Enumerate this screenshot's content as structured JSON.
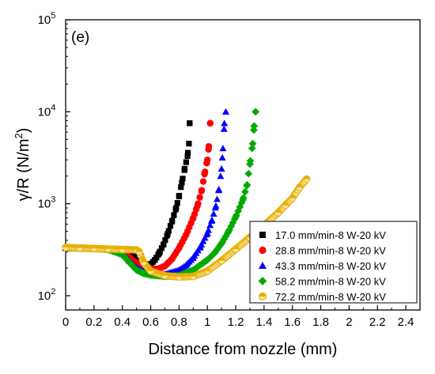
{
  "chart_data": {
    "type": "scatter",
    "title": "",
    "panel_label": "(e)",
    "xlabel": "Distance from nozzle (mm)",
    "ylabel_main": "γ/R (N/m",
    "ylabel_sup": "2",
    "ylabel_end": ")",
    "xlim": [
      0,
      2.5
    ],
    "ylim": [
      70,
      100000
    ],
    "y_scale": "log",
    "x_ticks": [
      "0",
      "0.2",
      "0.4",
      "0.6",
      "0.8",
      "1",
      "1.2",
      "1.4",
      "1.6",
      "1.8",
      "2",
      "2.2",
      "2.4"
    ],
    "y_ticks": [
      {
        "base": "10",
        "exp": "2",
        "value": 100
      },
      {
        "base": "10",
        "exp": "3",
        "value": 1000
      },
      {
        "base": "10",
        "exp": "4",
        "value": 10000
      },
      {
        "base": "10",
        "exp": "5",
        "value": 100000
      }
    ],
    "grid": false,
    "legend_position": "bottom-right",
    "series": [
      {
        "name": "17.0 mm/min-8 W-20 kV",
        "marker": "square",
        "color": "#000000",
        "points": [
          [
            0,
            330
          ],
          [
            0.1,
            328
          ],
          [
            0.2,
            326
          ],
          [
            0.3,
            322
          ],
          [
            0.4,
            310
          ],
          [
            0.45,
            290
          ],
          [
            0.5,
            255
          ],
          [
            0.55,
            225
          ],
          [
            0.58,
            215
          ],
          [
            0.6,
            220
          ],
          [
            0.63,
            245
          ],
          [
            0.66,
            290
          ],
          [
            0.69,
            360
          ],
          [
            0.72,
            470
          ],
          [
            0.75,
            640
          ],
          [
            0.78,
            900
          ],
          [
            0.8,
            1200
          ],
          [
            0.82,
            1700
          ],
          [
            0.84,
            2400
          ],
          [
            0.86,
            3300
          ],
          [
            0.87,
            4500
          ],
          [
            0.875,
            7500
          ]
        ]
      },
      {
        "name": "28.8 mm/min-8 W-20 kV",
        "marker": "circle",
        "color": "#ff0000",
        "points": [
          [
            0,
            330
          ],
          [
            0.1,
            328
          ],
          [
            0.2,
            326
          ],
          [
            0.3,
            322
          ],
          [
            0.4,
            300
          ],
          [
            0.45,
            260
          ],
          [
            0.5,
            225
          ],
          [
            0.55,
            205
          ],
          [
            0.6,
            195
          ],
          [
            0.65,
            195
          ],
          [
            0.7,
            210
          ],
          [
            0.75,
            250
          ],
          [
            0.8,
            330
          ],
          [
            0.85,
            460
          ],
          [
            0.9,
            700
          ],
          [
            0.93,
            950
          ],
          [
            0.96,
            1400
          ],
          [
            0.98,
            2100
          ],
          [
            1.0,
            3000
          ],
          [
            1.01,
            4200
          ],
          [
            1.02,
            7500
          ]
        ]
      },
      {
        "name": "43.3 mm/min-8 W-20 kV",
        "marker": "triangle",
        "color": "#0000ff",
        "points": [
          [
            0,
            330
          ],
          [
            0.1,
            328
          ],
          [
            0.2,
            325
          ],
          [
            0.3,
            320
          ],
          [
            0.4,
            290
          ],
          [
            0.45,
            240
          ],
          [
            0.5,
            200
          ],
          [
            0.55,
            185
          ],
          [
            0.6,
            175
          ],
          [
            0.7,
            172
          ],
          [
            0.8,
            190
          ],
          [
            0.85,
            215
          ],
          [
            0.9,
            260
          ],
          [
            0.95,
            340
          ],
          [
            1.0,
            480
          ],
          [
            1.03,
            650
          ],
          [
            1.06,
            950
          ],
          [
            1.08,
            1400
          ],
          [
            1.1,
            2400
          ],
          [
            1.11,
            4000
          ],
          [
            1.12,
            7500
          ],
          [
            1.13,
            10000
          ]
        ]
      },
      {
        "name": "58.2 mm/min-8 W-20 kV",
        "marker": "diamond",
        "color": "#00aa00",
        "points": [
          [
            0,
            330
          ],
          [
            0.1,
            328
          ],
          [
            0.2,
            325
          ],
          [
            0.3,
            318
          ],
          [
            0.4,
            280
          ],
          [
            0.45,
            230
          ],
          [
            0.5,
            190
          ],
          [
            0.55,
            175
          ],
          [
            0.6,
            168
          ],
          [
            0.7,
            162
          ],
          [
            0.8,
            165
          ],
          [
            0.9,
            190
          ],
          [
            1.0,
            245
          ],
          [
            1.05,
            290
          ],
          [
            1.1,
            370
          ],
          [
            1.15,
            500
          ],
          [
            1.2,
            720
          ],
          [
            1.25,
            1100
          ],
          [
            1.28,
            1600
          ],
          [
            1.3,
            2700
          ],
          [
            1.32,
            4500
          ],
          [
            1.33,
            7000
          ],
          [
            1.34,
            10000
          ]
        ]
      },
      {
        "name": "72.2 mm/min-8 W-20 kV",
        "marker": "circle-half",
        "color": "#e8b000",
        "points": [
          [
            0,
            335
          ],
          [
            0.1,
            330
          ],
          [
            0.2,
            326
          ],
          [
            0.3,
            322
          ],
          [
            0.4,
            318
          ],
          [
            0.5,
            315
          ],
          [
            0.52,
            300
          ],
          [
            0.55,
            230
          ],
          [
            0.6,
            185
          ],
          [
            0.7,
            165
          ],
          [
            0.8,
            160
          ],
          [
            0.9,
            162
          ],
          [
            1.0,
            185
          ],
          [
            1.1,
            240
          ],
          [
            1.2,
            320
          ],
          [
            1.3,
            430
          ],
          [
            1.4,
            580
          ],
          [
            1.5,
            800
          ],
          [
            1.55,
            960
          ],
          [
            1.6,
            1150
          ],
          [
            1.65,
            1500
          ],
          [
            1.7,
            1850
          ]
        ]
      }
    ]
  }
}
